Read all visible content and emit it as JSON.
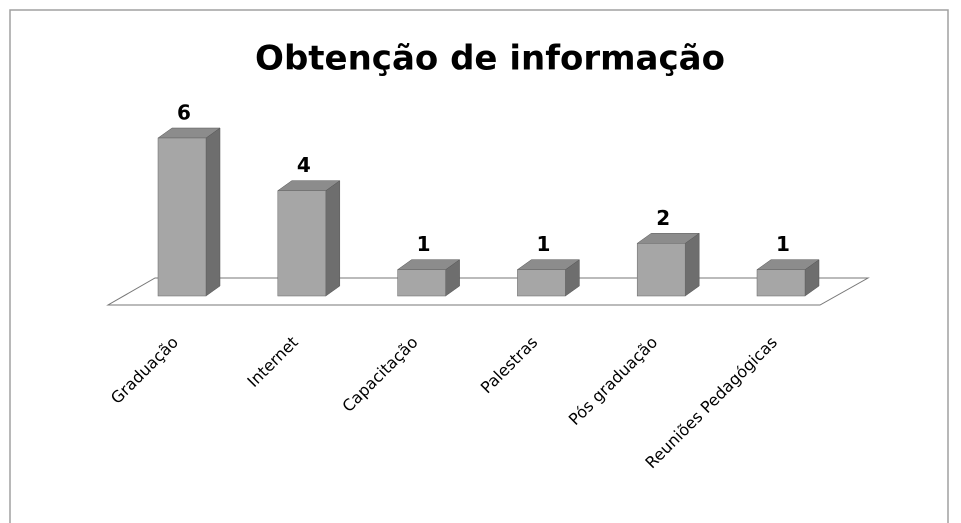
{
  "chart_data": {
    "type": "bar3d",
    "title": "Obtenção de informação",
    "categories": [
      "Graduação",
      "Internet",
      "Capacitação",
      "Palestras",
      "Pós graduação",
      "Reuniões Pedagógicas"
    ],
    "values": [
      6,
      4,
      1,
      1,
      2,
      1
    ],
    "color": "#a6a6a6"
  }
}
